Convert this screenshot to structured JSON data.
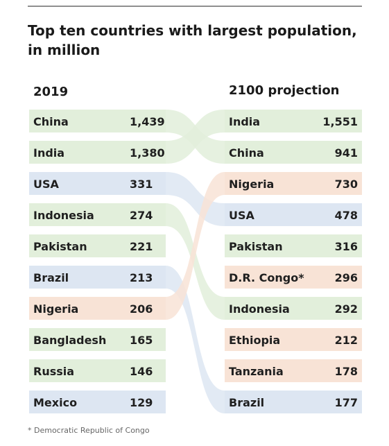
{
  "chart_data": {
    "type": "table",
    "title_line1": "Top ten countries with largest population,",
    "title_line2": "in million",
    "columns": [
      {
        "label": "2019",
        "rows": [
          {
            "country": "China",
            "value": "1,439",
            "group": "asia"
          },
          {
            "country": "India",
            "value": "1,380",
            "group": "asia"
          },
          {
            "country": "USA",
            "value": "331",
            "group": "americas"
          },
          {
            "country": "Indonesia",
            "value": "274",
            "group": "asia"
          },
          {
            "country": "Pakistan",
            "value": "221",
            "group": "asia"
          },
          {
            "country": "Brazil",
            "value": "213",
            "group": "americas"
          },
          {
            "country": "Nigeria",
            "value": "206",
            "group": "africa"
          },
          {
            "country": "Bangladesh",
            "value": "165",
            "group": "asia"
          },
          {
            "country": "Russia",
            "value": "146",
            "group": "asia"
          },
          {
            "country": "Mexico",
            "value": "129",
            "group": "americas"
          }
        ]
      },
      {
        "label": "2100 projection",
        "rows": [
          {
            "country": "India",
            "value": "1,551",
            "group": "asia"
          },
          {
            "country": "China",
            "value": "941",
            "group": "asia"
          },
          {
            "country": "Nigeria",
            "value": "730",
            "group": "africa"
          },
          {
            "country": "USA",
            "value": "478",
            "group": "americas"
          },
          {
            "country": "Pakistan",
            "value": "316",
            "group": "asia"
          },
          {
            "country": "D.R. Congo*",
            "value": "296",
            "group": "africa"
          },
          {
            "country": "Indonesia",
            "value": "292",
            "group": "asia"
          },
          {
            "country": "Ethiopia",
            "value": "212",
            "group": "africa"
          },
          {
            "country": "Tanzania",
            "value": "178",
            "group": "africa"
          },
          {
            "country": "Brazil",
            "value": "177",
            "group": "americas"
          }
        ]
      }
    ],
    "links": [
      {
        "from": 0,
        "to": 1
      },
      {
        "from": 1,
        "to": 0
      },
      {
        "from": 2,
        "to": 3
      },
      {
        "from": 3,
        "to": 6
      },
      {
        "from": 5,
        "to": 9
      },
      {
        "from": 6,
        "to": 2
      }
    ],
    "colors": {
      "asia": "#e2efdb",
      "americas": "#dde6f2",
      "africa": "#f8e3d6"
    },
    "footnote": "* Democratic Republic of Congo"
  }
}
